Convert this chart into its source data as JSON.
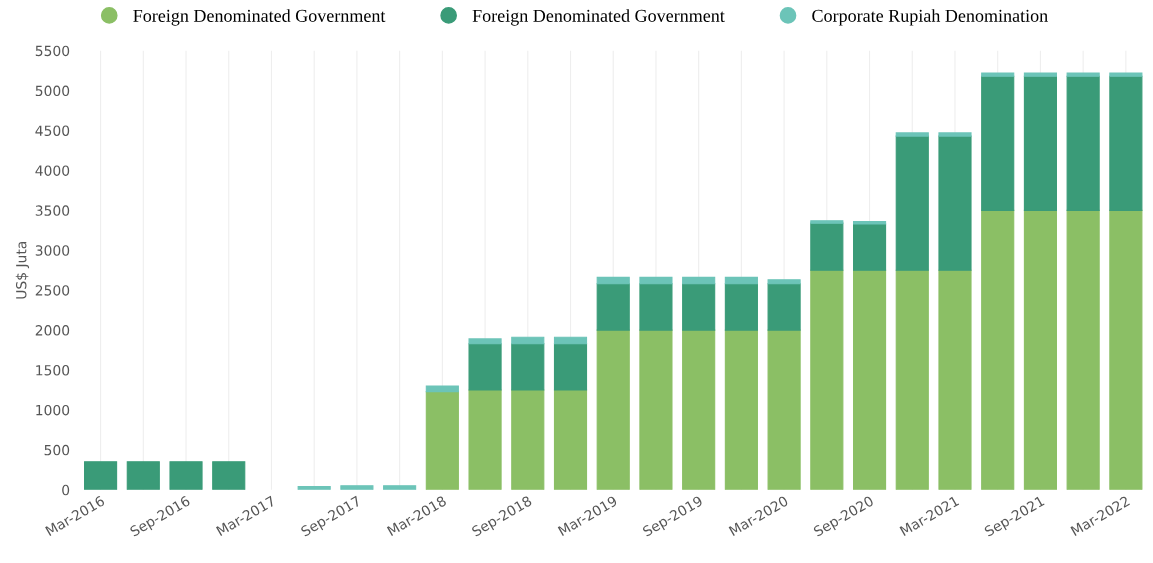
{
  "chart_data": {
    "type": "bar",
    "stacked": true,
    "ylabel": "US$ Juta",
    "categories": [
      "Mar-2016",
      null,
      "Sep-2016",
      null,
      "Mar-2017",
      null,
      "Sep-2017",
      null,
      "Mar-2018",
      null,
      "Sep-2018",
      null,
      "Mar-2019",
      null,
      "Sep-2019",
      null,
      "Mar-2020",
      null,
      "Sep-2020",
      null,
      "Mar-2021",
      null,
      "Sep-2021",
      null,
      "Mar-2022"
    ],
    "series": [
      {
        "name": "Foreign Denominated Government",
        "color": "#8bbf65",
        "values": [
          0,
          0,
          0,
          0,
          0,
          0,
          0,
          0,
          1230,
          1250,
          1250,
          1250,
          2000,
          2000,
          2000,
          2000,
          2000,
          2750,
          2750,
          2750,
          2750,
          3500,
          3500,
          3500,
          3500
        ]
      },
      {
        "name": "Foreign Denominated Government",
        "color": "#3a9b78",
        "values": [
          350,
          350,
          350,
          350,
          0,
          0,
          0,
          0,
          0,
          580,
          580,
          580,
          580,
          580,
          580,
          580,
          580,
          590,
          580,
          1680,
          1680,
          1680,
          1680,
          1680,
          1680
        ]
      },
      {
        "name": "Corporate Rupiah Denomination",
        "color": "#6cc4b8",
        "values": [
          0,
          0,
          0,
          0,
          0,
          40,
          50,
          50,
          70,
          60,
          80,
          80,
          80,
          80,
          80,
          80,
          50,
          30,
          30,
          40,
          40,
          40,
          40,
          40,
          40
        ]
      }
    ],
    "ylim": [
      0,
      5500
    ],
    "yticks": [
      0,
      500,
      1000,
      1500,
      2000,
      2500,
      3000,
      3500,
      4000,
      4500,
      5000,
      5500
    ],
    "grid": "x",
    "legend": "top"
  }
}
